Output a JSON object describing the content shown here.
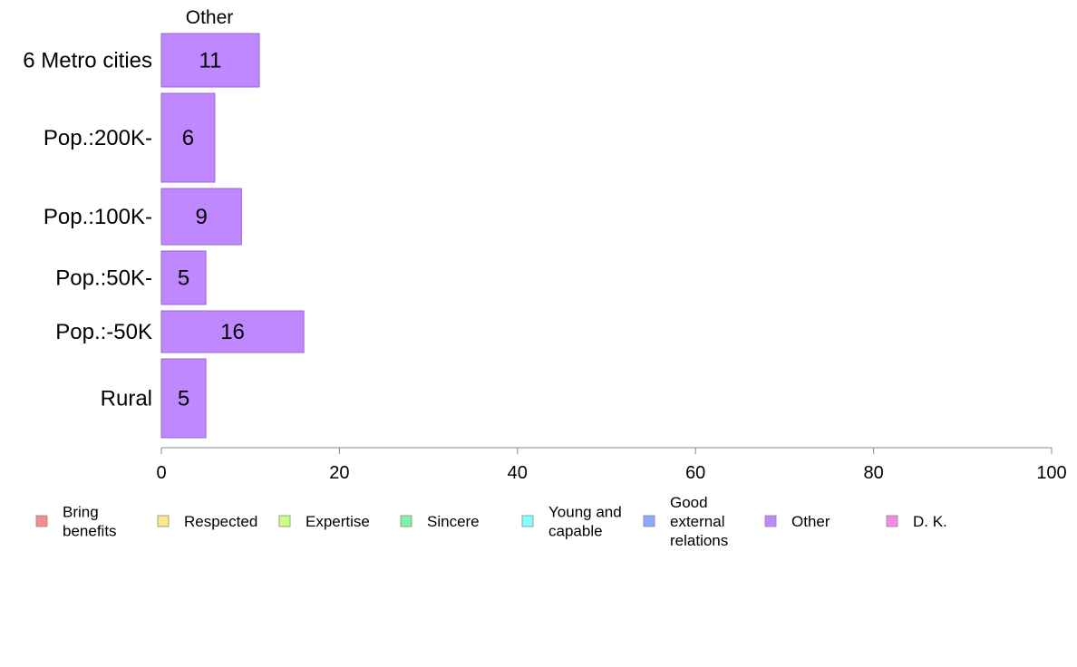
{
  "chart_data": {
    "type": "bar",
    "orientation": "horizontal",
    "title": "Other",
    "xlabel": "",
    "ylabel": "",
    "categories": [
      "6 Metro cities",
      "Pop.:200K-",
      "Pop.:100K-",
      "Pop.:50K-",
      "Pop.:-50K",
      "Rural"
    ],
    "series": [
      {
        "name": "Other",
        "values": [
          11,
          6,
          9,
          5,
          16,
          5
        ],
        "color": "#bf88ff",
        "edge": "#9966cc"
      }
    ],
    "value_labels": [
      "11",
      "6",
      "9",
      "5",
      "16",
      "5"
    ],
    "xlim": [
      0,
      100
    ],
    "xticks": [
      0,
      20,
      40,
      60,
      80,
      100
    ],
    "xtick_labels": [
      "0",
      "20",
      "40",
      "60",
      "80",
      "100"
    ],
    "grid": false,
    "legend_position": "bottom",
    "legend": [
      {
        "lines": [
          "Bring",
          "benefits"
        ],
        "color": "#f88c8c"
      },
      {
        "lines": [
          "Respected"
        ],
        "color": "#fde68c"
      },
      {
        "lines": [
          "Expertise"
        ],
        "color": "#ccff88"
      },
      {
        "lines": [
          "Sincere"
        ],
        "color": "#88f0aa"
      },
      {
        "lines": [
          "Young and",
          "capable"
        ],
        "color": "#88ffff"
      },
      {
        "lines": [
          "Good",
          "external",
          "relations"
        ],
        "color": "#88aaff"
      },
      {
        "lines": [
          "Other"
        ],
        "color": "#bf88ff"
      },
      {
        "lines": [
          "D. K."
        ],
        "color": "#f888e8"
      }
    ]
  }
}
